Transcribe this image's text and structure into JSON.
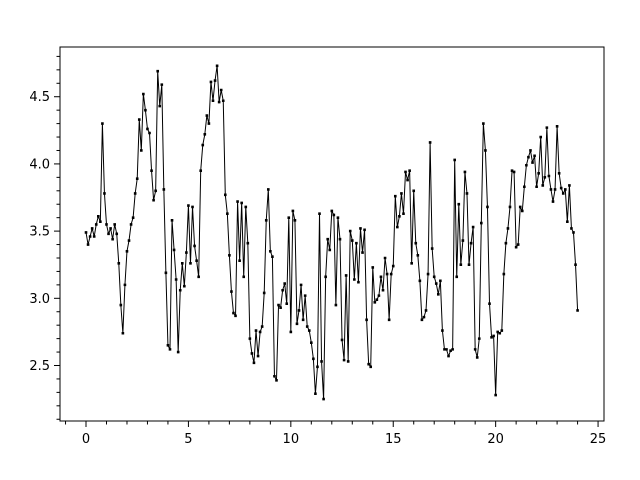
{
  "figure": {
    "background": "#ffffff",
    "line_color": "#000000",
    "marker_color": "#000000",
    "marker_shape": "square",
    "title": ""
  },
  "chart_data": {
    "type": "line",
    "title": "",
    "xlabel": "",
    "ylabel": "",
    "grid": false,
    "legend": null,
    "xlim": [
      -1.27,
      25.29
    ],
    "ylim": [
      2.087,
      4.87
    ],
    "x_tick_values": [
      0,
      5,
      10,
      15,
      20,
      25
    ],
    "x_tick_labels": [
      "0",
      "5",
      "10",
      "15",
      "20",
      "25"
    ],
    "y_tick_values": [
      2.5,
      3.0,
      3.5,
      4.0,
      4.5
    ],
    "y_tick_labels": [
      "2.5",
      "3.0",
      "3.5",
      "4.0",
      "4.5"
    ],
    "x_minor_step": 1,
    "y_minor_step": 0.1,
    "x_start": 0,
    "x_step": 0.1,
    "n_points": 241,
    "y": [
      3.49,
      3.4,
      3.46,
      3.52,
      3.46,
      3.55,
      3.61,
      3.57,
      4.3,
      3.78,
      3.55,
      3.48,
      3.52,
      3.44,
      3.55,
      3.48,
      3.26,
      2.95,
      2.74,
      3.1,
      3.35,
      3.43,
      3.55,
      3.6,
      3.78,
      3.89,
      4.33,
      4.1,
      4.52,
      4.4,
      4.26,
      4.23,
      3.95,
      3.73,
      3.8,
      4.69,
      4.43,
      4.59,
      3.81,
      3.19,
      2.65,
      2.62,
      3.58,
      3.36,
      3.14,
      2.6,
      3.06,
      3.26,
      3.09,
      3.34,
      3.69,
      3.26,
      3.68,
      3.39,
      3.28,
      3.16,
      3.95,
      4.14,
      4.22,
      4.36,
      4.3,
      4.61,
      4.47,
      4.62,
      4.73,
      4.46,
      4.55,
      4.47,
      3.77,
      3.63,
      3.32,
      3.05,
      2.89,
      2.87,
      3.72,
      3.28,
      3.71,
      3.16,
      3.68,
      3.41,
      2.7,
      2.59,
      2.52,
      2.76,
      2.57,
      2.75,
      2.79,
      3.04,
      3.58,
      3.81,
      3.35,
      3.31,
      2.42,
      2.39,
      2.95,
      2.93,
      3.06,
      3.11,
      2.96,
      3.6,
      2.75,
      3.65,
      3.58,
      2.81,
      2.91,
      3.1,
      2.84,
      3.02,
      2.79,
      2.76,
      2.67,
      2.55,
      2.29,
      2.49,
      3.63,
      2.53,
      2.25,
      3.16,
      3.44,
      3.36,
      3.65,
      3.62,
      2.95,
      3.6,
      3.44,
      2.69,
      2.54,
      3.17,
      2.53,
      3.5,
      3.43,
      3.14,
      3.41,
      3.12,
      3.52,
      3.34,
      3.51,
      2.84,
      2.51,
      2.49,
      3.23,
      2.97,
      2.99,
      3.02,
      3.16,
      3.06,
      3.3,
      3.18,
      2.84,
      3.18,
      3.24,
      3.76,
      3.53,
      3.61,
      3.78,
      3.63,
      3.94,
      3.88,
      3.95,
      3.26,
      3.8,
      3.41,
      3.32,
      3.13,
      2.84,
      2.86,
      2.91,
      3.18,
      4.16,
      3.37,
      3.16,
      3.11,
      3.03,
      3.13,
      2.76,
      2.62,
      2.62,
      2.57,
      2.61,
      2.62,
      4.03,
      3.16,
      3.7,
      3.25,
      3.43,
      3.94,
      3.78,
      3.25,
      3.41,
      3.53,
      2.62,
      2.56,
      2.7,
      3.56,
      4.3,
      4.1,
      3.68,
      2.96,
      2.71,
      2.72,
      2.28,
      2.75,
      2.74,
      2.76,
      3.18,
      3.41,
      3.52,
      3.68,
      3.95,
      3.94,
      3.38,
      3.4,
      3.68,
      3.65,
      3.83,
      3.99,
      4.05,
      4.1,
      4.01,
      4.06,
      3.83,
      3.93,
      4.2,
      3.84,
      3.9,
      4.27,
      3.91,
      3.81,
      3.72,
      3.81,
      4.28,
      3.93,
      3.82,
      3.78,
      3.81,
      3.57,
      3.84,
      3.52,
      3.49,
      3.25,
      2.91
    ]
  }
}
